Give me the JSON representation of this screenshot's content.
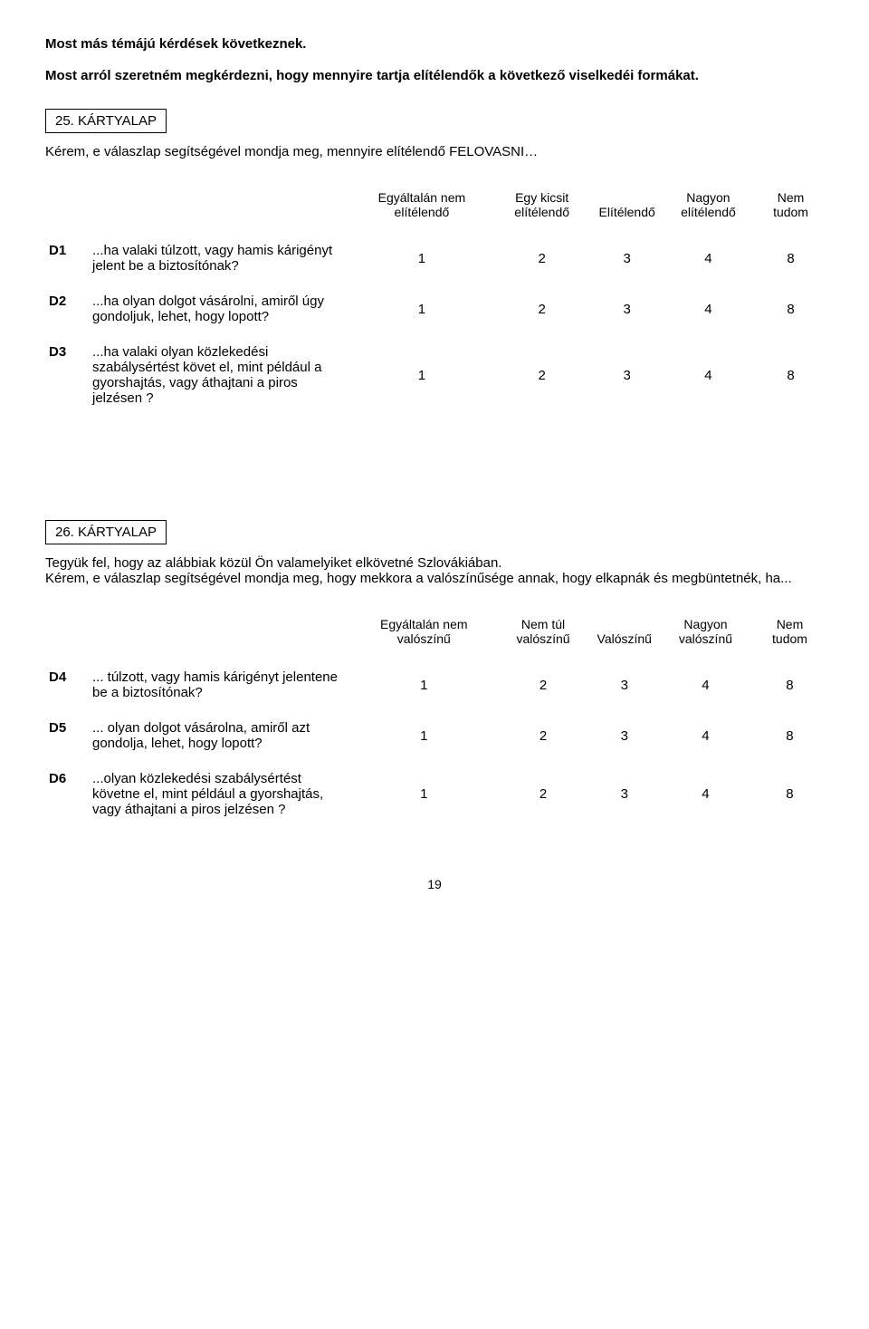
{
  "intro_1": "Most más témájú kérdések következnek.",
  "intro_2": "Most arról szeretném megkérdezni, hogy mennyire tartja elítélendők a következő viselkedéi formákat.",
  "card25": {
    "label": "25. KÁRTYALAP",
    "prompt": "Kérem, e válaszlap segítségével mondja meg, mennyire elítélendő FELOVASNI…",
    "headers": [
      "Egyáltalán nem elítélendő",
      "Egy kicsit elítélendő",
      "Elítélendő",
      "Nagyon elítélendő",
      "Nem tudom"
    ],
    "rows": [
      {
        "id": "D1",
        "text": "...ha valaki túlzott, vagy hamis kárigényt jelent be a biztosítónak?",
        "values": [
          "1",
          "2",
          "3",
          "4",
          "8"
        ]
      },
      {
        "id": "D2",
        "text": "...ha olyan dolgot vásárolni, amiről úgy gondoljuk, lehet, hogy lopott?",
        "values": [
          "1",
          "2",
          "3",
          "4",
          "8"
        ]
      },
      {
        "id": "D3",
        "text": "...ha valaki olyan közlekedési szabálysértést követ el, mint például a gyorshajtás, vagy áthajtani a piros jelzésen ?",
        "values": [
          "1",
          "2",
          "3",
          "4",
          "8"
        ]
      }
    ]
  },
  "card26": {
    "label": "26. KÁRTYALAP",
    "prompt": "Tegyük fel, hogy az alábbiak közül Ön valamelyiket elkövetné Szlovákiában.\nKérem, e válaszlap segítségével mondja meg, hogy mekkora a valószínűsége annak, hogy elkapnák és megbüntetnék, ha...",
    "headers": [
      "Egyáltalán nem valószínű",
      "Nem túl valószínű",
      "Valószínű",
      "Nagyon valószínű",
      "Nem tudom"
    ],
    "rows": [
      {
        "id": "D4",
        "text": "... túlzott, vagy hamis kárigényt jelentene be a biztosítónak?",
        "values": [
          "1",
          "2",
          "3",
          "4",
          "8"
        ]
      },
      {
        "id": "D5",
        "text": "... olyan dolgot vásárolna, amiről azt gondolja, lehet, hogy lopott?",
        "values": [
          "1",
          "2",
          "3",
          "4",
          "8"
        ]
      },
      {
        "id": "D6",
        "text": "...olyan közlekedési szabálysértést követne el, mint például a gyorshajtás, vagy áthajtani a piros jelzésen ?",
        "values": [
          "1",
          "2",
          "3",
          "4",
          "8"
        ]
      }
    ]
  },
  "page_number": "19"
}
